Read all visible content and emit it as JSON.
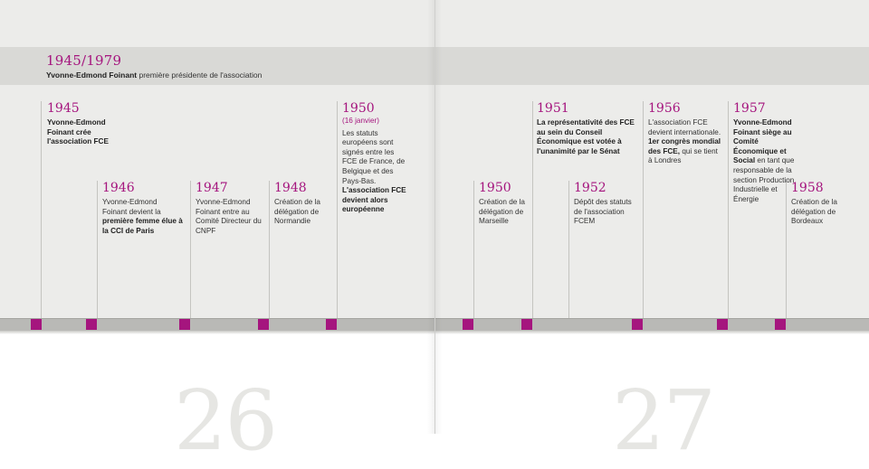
{
  "header": {
    "years": "1945/1979",
    "name": "Yvonne-Edmond Foinant",
    "text": "première présidente de l'association"
  },
  "events": [
    {
      "id": "e1945",
      "year": "1945",
      "bold": "Yvonne-Edmond Foinant crée l'association FCE"
    },
    {
      "id": "e1946",
      "year": "1946",
      "pre": "Yvonne-Edmond Foinant devient la ",
      "bold": "première femme élue à la CCI de Paris"
    },
    {
      "id": "e1947",
      "year": "1947",
      "pre": "Yvonne-Edmond Foinant entre au Comité Directeur du CNPF"
    },
    {
      "id": "e1948",
      "year": "1948",
      "pre": "Création de la délégation de Normandie"
    },
    {
      "id": "e1950a",
      "year": "1950",
      "sub": "(16 janvier)",
      "pre": "Les statuts européens sont signés entre les FCE de France, de Belgique et des Pays-Bas. ",
      "bold": "L'association FCE devient alors européenne"
    },
    {
      "id": "e1950b",
      "year": "1950",
      "pre": "Création de la délégation de Marseille"
    },
    {
      "id": "e1951",
      "year": "1951",
      "bold": "La représentativité des FCE au sein du Conseil Économique est votée à l'unanimité par le Sénat"
    },
    {
      "id": "e1952",
      "year": "1952",
      "pre": "Dépôt des statuts de l'association FCEM"
    },
    {
      "id": "e1956",
      "year": "1956",
      "pre": "L'association FCE devient internationale. ",
      "bold": "1er congrès mondial des FCE,",
      "post": " qui se tient à Londres"
    },
    {
      "id": "e1957",
      "year": "1957",
      "bold": "Yvonne-Edmond Foinant siège au Comité Économique et Social",
      "post": " en tant que responsable de la section Production Industrielle et Énergie"
    },
    {
      "id": "e1958",
      "year": "1958",
      "pre": "Création de la délégation de Bordeaux"
    }
  ],
  "pages": {
    "left": "26",
    "right": "27"
  },
  "colors": {
    "accent": "#a5157e",
    "band": "#ececea",
    "header": "#d9d9d6"
  }
}
